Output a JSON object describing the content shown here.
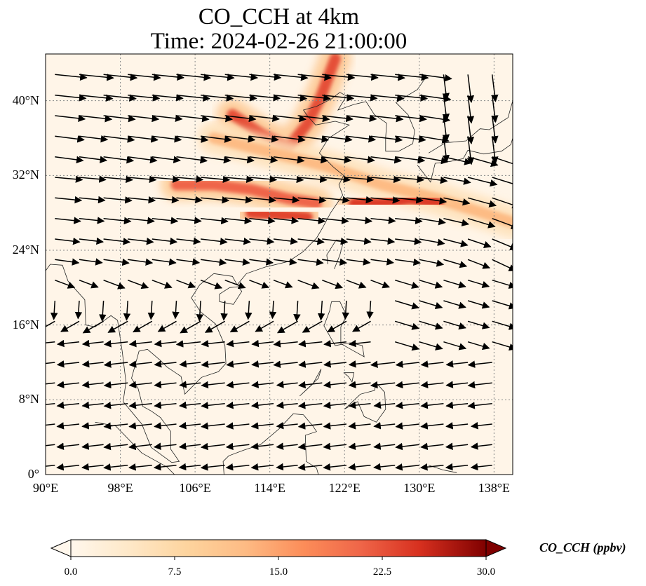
{
  "title": {
    "line1": "CO_CCH at 4km",
    "line2": "Time: 2024-02-26 21:00:00"
  },
  "axes": {
    "lat_ticks": [
      "0°",
      "8°N",
      "16°N",
      "24°N",
      "32°N",
      "40°N"
    ],
    "lon_ticks": [
      "90°E",
      "98°E",
      "106°E",
      "114°E",
      "122°E",
      "130°E",
      "138°E"
    ],
    "lon_range": [
      90,
      140
    ],
    "lat_range": [
      0,
      45
    ],
    "gridlines": true
  },
  "colorbar": {
    "label": "CO_CCH (ppbv)",
    "ticks": [
      "0.0",
      "7.5",
      "15.0",
      "22.5",
      "30.0"
    ],
    "range": [
      0,
      30
    ],
    "colormap": "OrRd",
    "extend": "both"
  },
  "colors": {
    "background_field": "#fff5e8",
    "low": "#fff3e2",
    "mid": "#f7a05a",
    "high": "#d8401f",
    "max": "#7f0000"
  },
  "plumes": [
    {
      "name": "north-china-plume",
      "path": [
        [
          110,
          38.5
        ],
        [
          113,
          36.5
        ],
        [
          116,
          35
        ],
        [
          118,
          37.5
        ],
        [
          119.5,
          40.5
        ],
        [
          121,
          44.5
        ]
      ],
      "intensity": 22
    },
    {
      "name": "yellow-sea-band",
      "path": [
        [
          108,
          36
        ],
        [
          114,
          34.5
        ],
        [
          120,
          33
        ],
        [
          126,
          31
        ],
        [
          132,
          29.5
        ],
        [
          140,
          27
        ]
      ],
      "intensity": 12
    },
    {
      "name": "east-china-sea-core",
      "path": [
        [
          123,
          29
        ],
        [
          126,
          29
        ],
        [
          129,
          29.5
        ],
        [
          132,
          29
        ]
      ],
      "intensity": 24
    },
    {
      "name": "yangtze-plume",
      "path": [
        [
          104,
          31
        ],
        [
          108,
          31
        ],
        [
          112,
          30.5
        ],
        [
          116,
          29.5
        ],
        [
          119,
          29
        ]
      ],
      "intensity": 20
    },
    {
      "name": "taiwan-strait-core",
      "path": [
        [
          112,
          28
        ],
        [
          115,
          27.8
        ],
        [
          118,
          27.5
        ]
      ],
      "intensity": 23
    }
  ],
  "wind_field": "westerly north of ~20°N turning to northeasterly/easterly south of ~18°N"
}
